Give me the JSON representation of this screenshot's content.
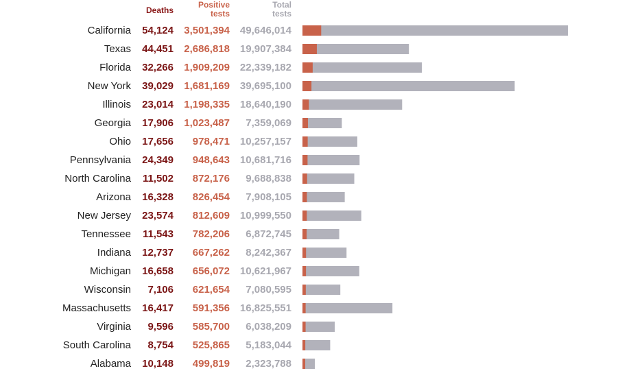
{
  "headers": {
    "deaths": "Deaths",
    "positive": [
      "Positive",
      "tests"
    ],
    "total": [
      "Total",
      "tests"
    ]
  },
  "colors": {
    "deaths": "#7a1414",
    "positive": "#c8624a",
    "total": "#b2b2bb",
    "state": "#222222"
  },
  "chart_data": {
    "type": "bar",
    "categories": [
      "California",
      "Texas",
      "Florida",
      "New York",
      "Illinois",
      "Georgia",
      "Ohio",
      "Pennsylvania",
      "North Carolina",
      "Arizona",
      "New Jersey",
      "Tennessee",
      "Indiana",
      "Michigan",
      "Wisconsin",
      "Massachusetts",
      "Virginia",
      "South Carolina",
      "Alabama"
    ],
    "deaths_labels": [
      "54,124",
      "44,451",
      "32,266",
      "39,029",
      "23,014",
      "17,906",
      "17,656",
      "24,349",
      "11,502",
      "16,328",
      "23,574",
      "11,543",
      "12,737",
      "16,658",
      "7,106",
      "16,417",
      "9,596",
      "8,754",
      "10,148"
    ],
    "positive_labels": [
      "3,501,394",
      "2,686,818",
      "1,909,209",
      "1,681,169",
      "1,198,335",
      "1,023,487",
      "978,471",
      "948,643",
      "872,176",
      "826,454",
      "812,609",
      "782,206",
      "667,262",
      "656,072",
      "621,654",
      "591,356",
      "585,700",
      "525,865",
      "499,819"
    ],
    "total_labels": [
      "49,646,014",
      "19,907,384",
      "22,339,182",
      "39,695,100",
      "18,640,190",
      "7,359,069",
      "10,257,157",
      "10,681,716",
      "9,688,838",
      "7,908,105",
      "10,999,550",
      "6,872,745",
      "8,242,367",
      "10,621,967",
      "7,080,595",
      "16,825,551",
      "6,038,209",
      "5,183,044",
      "2,323,788"
    ],
    "series": [
      {
        "name": "Positive tests",
        "values": [
          3501394,
          2686818,
          1909209,
          1681169,
          1198335,
          1023487,
          978471,
          948643,
          872176,
          826454,
          812609,
          782206,
          667262,
          656072,
          621654,
          591356,
          585700,
          525865,
          499819
        ]
      },
      {
        "name": "Total tests",
        "values": [
          49646014,
          19907384,
          22339182,
          39695100,
          18640190,
          7359069,
          10257157,
          10681716,
          9688838,
          7908105,
          10999550,
          6872745,
          8242367,
          10621967,
          7080595,
          16825551,
          6038209,
          5183044,
          2323788
        ]
      }
    ],
    "xlim": [
      0,
      49646014
    ]
  }
}
